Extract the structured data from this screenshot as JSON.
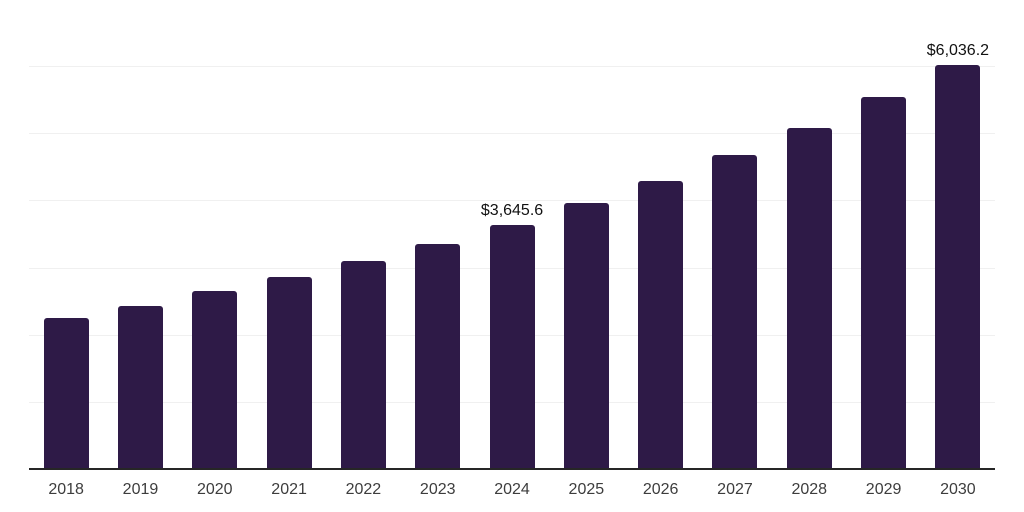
{
  "chart_data": {
    "type": "bar",
    "title": "",
    "xlabel": "",
    "ylabel": "",
    "categories": [
      "2018",
      "2019",
      "2020",
      "2021",
      "2022",
      "2023",
      "2024",
      "2025",
      "2026",
      "2027",
      "2028",
      "2029",
      "2030"
    ],
    "values": [
      2270,
      2450,
      2660,
      2870,
      3110,
      3360,
      3645.6,
      3980,
      4310,
      4690,
      5100,
      5550,
      6036.2
    ],
    "bar_labels": [
      "",
      "",
      "",
      "",
      "",
      "",
      "$3,645.6",
      "",
      "",
      "",
      "",
      "",
      "$6,036.2"
    ],
    "ylim": [
      0,
      7000
    ],
    "gridline_interval": 1000,
    "grid": true,
    "legend": "none"
  },
  "style": {
    "bar_color": "#2e1a47",
    "gridline_color": "#f0f0f0",
    "axis_color": "#262626",
    "tick_label_color": "#3d3d3d",
    "value_label_color": "#111111",
    "background": "#ffffff"
  }
}
